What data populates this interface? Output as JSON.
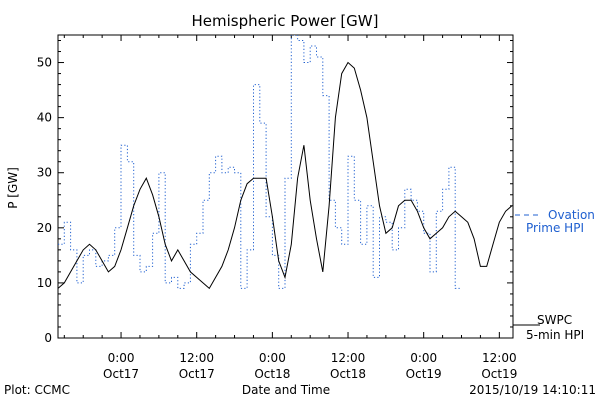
{
  "chart_data": {
    "type": "line",
    "title": "Hemispheric Power [GW]",
    "xlabel": "Date and Time",
    "ylabel": "P [GW]",
    "ylim": [
      0,
      55
    ],
    "yticks": [
      0,
      10,
      20,
      30,
      40,
      50
    ],
    "xlim": [
      "2015-10-16 14:00",
      "2015-10-19 14:10"
    ],
    "xticks": [
      {
        "time": "2015-10-17 00:00",
        "label_top": "0:00",
        "label_bottom": "Oct17"
      },
      {
        "time": "2015-10-17 12:00",
        "label_top": "12:00",
        "label_bottom": "Oct17"
      },
      {
        "time": "2015-10-18 00:00",
        "label_top": "0:00",
        "label_bottom": "Oct18"
      },
      {
        "time": "2015-10-18 12:00",
        "label_top": "12:00",
        "label_bottom": "Oct18"
      },
      {
        "time": "2015-10-19 00:00",
        "label_top": "0:00",
        "label_bottom": "Oct19"
      },
      {
        "time": "2015-10-19 12:00",
        "label_top": "12:00",
        "label_bottom": "Oct19"
      }
    ],
    "grid": false,
    "series": [
      {
        "name": "SWPC 5-min HPI",
        "color": "#000000",
        "style": "solid",
        "points": [
          [
            "2015-10-16 14:00",
            9
          ],
          [
            "2015-10-16 15:00",
            10
          ],
          [
            "2015-10-16 16:00",
            12
          ],
          [
            "2015-10-16 17:00",
            14
          ],
          [
            "2015-10-16 18:00",
            16
          ],
          [
            "2015-10-16 19:00",
            17
          ],
          [
            "2015-10-16 20:00",
            16
          ],
          [
            "2015-10-16 21:00",
            14
          ],
          [
            "2015-10-16 22:00",
            12
          ],
          [
            "2015-10-16 23:00",
            13
          ],
          [
            "2015-10-17 00:00",
            16
          ],
          [
            "2015-10-17 01:00",
            20
          ],
          [
            "2015-10-17 02:00",
            24
          ],
          [
            "2015-10-17 03:00",
            27
          ],
          [
            "2015-10-17 04:00",
            29
          ],
          [
            "2015-10-17 05:00",
            26
          ],
          [
            "2015-10-17 06:00",
            22
          ],
          [
            "2015-10-17 07:00",
            17
          ],
          [
            "2015-10-17 08:00",
            14
          ],
          [
            "2015-10-17 09:00",
            16
          ],
          [
            "2015-10-17 10:00",
            14
          ],
          [
            "2015-10-17 11:00",
            12
          ],
          [
            "2015-10-17 12:00",
            11
          ],
          [
            "2015-10-17 13:00",
            10
          ],
          [
            "2015-10-17 14:00",
            9
          ],
          [
            "2015-10-17 15:00",
            11
          ],
          [
            "2015-10-17 16:00",
            13
          ],
          [
            "2015-10-17 17:00",
            16
          ],
          [
            "2015-10-17 18:00",
            20
          ],
          [
            "2015-10-17 19:00",
            25
          ],
          [
            "2015-10-17 20:00",
            28
          ],
          [
            "2015-10-17 21:00",
            29
          ],
          [
            "2015-10-17 22:00",
            29
          ],
          [
            "2015-10-17 23:00",
            29
          ],
          [
            "2015-10-18 00:00",
            22
          ],
          [
            "2015-10-18 01:00",
            14
          ],
          [
            "2015-10-18 02:00",
            11
          ],
          [
            "2015-10-18 03:00",
            17
          ],
          [
            "2015-10-18 04:00",
            29
          ],
          [
            "2015-10-18 05:00",
            35
          ],
          [
            "2015-10-18 06:00",
            25
          ],
          [
            "2015-10-18 07:00",
            18
          ],
          [
            "2015-10-18 08:00",
            12
          ],
          [
            "2015-10-18 09:00",
            24
          ],
          [
            "2015-10-18 10:00",
            40
          ],
          [
            "2015-10-18 11:00",
            48
          ],
          [
            "2015-10-18 12:00",
            50
          ],
          [
            "2015-10-18 13:00",
            49
          ],
          [
            "2015-10-18 14:00",
            45
          ],
          [
            "2015-10-18 15:00",
            40
          ],
          [
            "2015-10-18 16:00",
            32
          ],
          [
            "2015-10-18 17:00",
            24
          ],
          [
            "2015-10-18 18:00",
            19
          ],
          [
            "2015-10-18 19:00",
            20
          ],
          [
            "2015-10-18 20:00",
            24
          ],
          [
            "2015-10-18 21:00",
            25
          ],
          [
            "2015-10-18 22:00",
            25
          ],
          [
            "2015-10-18 23:00",
            23
          ],
          [
            "2015-10-19 00:00",
            20
          ],
          [
            "2015-10-19 01:00",
            18
          ],
          [
            "2015-10-19 02:00",
            19
          ],
          [
            "2015-10-19 03:00",
            20
          ],
          [
            "2015-10-19 04:00",
            22
          ],
          [
            "2015-10-19 05:00",
            23
          ],
          [
            "2015-10-19 06:00",
            22
          ],
          [
            "2015-10-19 07:00",
            21
          ],
          [
            "2015-10-19 08:00",
            18
          ],
          [
            "2015-10-19 09:00",
            13
          ],
          [
            "2015-10-19 10:00",
            13
          ],
          [
            "2015-10-19 11:00",
            17
          ],
          [
            "2015-10-19 12:00",
            21
          ],
          [
            "2015-10-19 13:00",
            23
          ],
          [
            "2015-10-19 14:00",
            24
          ]
        ]
      },
      {
        "name": "Ovation Prime HPI",
        "color": "#2060d0",
        "style": "dotted",
        "points": [
          [
            "2015-10-16 14:00",
            17
          ],
          [
            "2015-10-16 15:00",
            21
          ],
          [
            "2015-10-16 16:00",
            16
          ],
          [
            "2015-10-16 17:00",
            10
          ],
          [
            "2015-10-16 18:00",
            15
          ],
          [
            "2015-10-16 19:00",
            16
          ],
          [
            "2015-10-16 20:00",
            13
          ],
          [
            "2015-10-16 21:00",
            14
          ],
          [
            "2015-10-16 22:00",
            15
          ],
          [
            "2015-10-16 23:00",
            20
          ],
          [
            "2015-10-17 00:00",
            35
          ],
          [
            "2015-10-17 01:00",
            32
          ],
          [
            "2015-10-17 02:00",
            15
          ],
          [
            "2015-10-17 03:00",
            12
          ],
          [
            "2015-10-17 04:00",
            13
          ],
          [
            "2015-10-17 05:00",
            19
          ],
          [
            "2015-10-17 06:00",
            30
          ],
          [
            "2015-10-17 07:00",
            10
          ],
          [
            "2015-10-17 08:00",
            11
          ],
          [
            "2015-10-17 09:00",
            9
          ],
          [
            "2015-10-17 10:00",
            10
          ],
          [
            "2015-10-17 11:00",
            17
          ],
          [
            "2015-10-17 12:00",
            19
          ],
          [
            "2015-10-17 13:00",
            25
          ],
          [
            "2015-10-17 14:00",
            30
          ],
          [
            "2015-10-17 15:00",
            33
          ],
          [
            "2015-10-17 16:00",
            30
          ],
          [
            "2015-10-17 17:00",
            31
          ],
          [
            "2015-10-17 18:00",
            30
          ],
          [
            "2015-10-17 19:00",
            9
          ],
          [
            "2015-10-17 20:00",
            16
          ],
          [
            "2015-10-17 21:00",
            46
          ],
          [
            "2015-10-17 22:00",
            39
          ],
          [
            "2015-10-17 23:00",
            22
          ],
          [
            "2015-10-18 00:00",
            15
          ],
          [
            "2015-10-18 01:00",
            9
          ],
          [
            "2015-10-18 02:00",
            29
          ],
          [
            "2015-10-18 03:00",
            55
          ],
          [
            "2015-10-18 04:00",
            54
          ],
          [
            "2015-10-18 05:00",
            50
          ],
          [
            "2015-10-18 06:00",
            53
          ],
          [
            "2015-10-18 07:00",
            51
          ],
          [
            "2015-10-18 08:00",
            44
          ],
          [
            "2015-10-18 09:00",
            25
          ],
          [
            "2015-10-18 10:00",
            20
          ],
          [
            "2015-10-18 11:00",
            17
          ],
          [
            "2015-10-18 12:00",
            33
          ],
          [
            "2015-10-18 13:00",
            25
          ],
          [
            "2015-10-18 14:00",
            17
          ],
          [
            "2015-10-18 15:00",
            24
          ],
          [
            "2015-10-18 16:00",
            11
          ],
          [
            "2015-10-18 17:00",
            22
          ],
          [
            "2015-10-18 18:00",
            21
          ],
          [
            "2015-10-18 19:00",
            16
          ],
          [
            "2015-10-18 20:00",
            20
          ],
          [
            "2015-10-18 21:00",
            27
          ],
          [
            "2015-10-18 22:00",
            25
          ],
          [
            "2015-10-18 23:00",
            23
          ],
          [
            "2015-10-19 00:00",
            19
          ],
          [
            "2015-10-19 01:00",
            12
          ],
          [
            "2015-10-19 02:00",
            23
          ],
          [
            "2015-10-19 03:00",
            27
          ],
          [
            "2015-10-19 04:00",
            31
          ],
          [
            "2015-10-19 05:00",
            9
          ]
        ]
      }
    ],
    "legend": [
      {
        "series": "Ovation Prime HPI",
        "lines": [
          "Ovation",
          "Prime HPI"
        ],
        "position": "right-middle"
      },
      {
        "series": "SWPC 5-min HPI",
        "lines": [
          "SWPC",
          "5-min HPI"
        ],
        "position": "right-bottom"
      }
    ],
    "footer": {
      "left": "Plot: CCMC",
      "center": "Date and Time",
      "right": "2015/10/19 14:10:11"
    }
  }
}
